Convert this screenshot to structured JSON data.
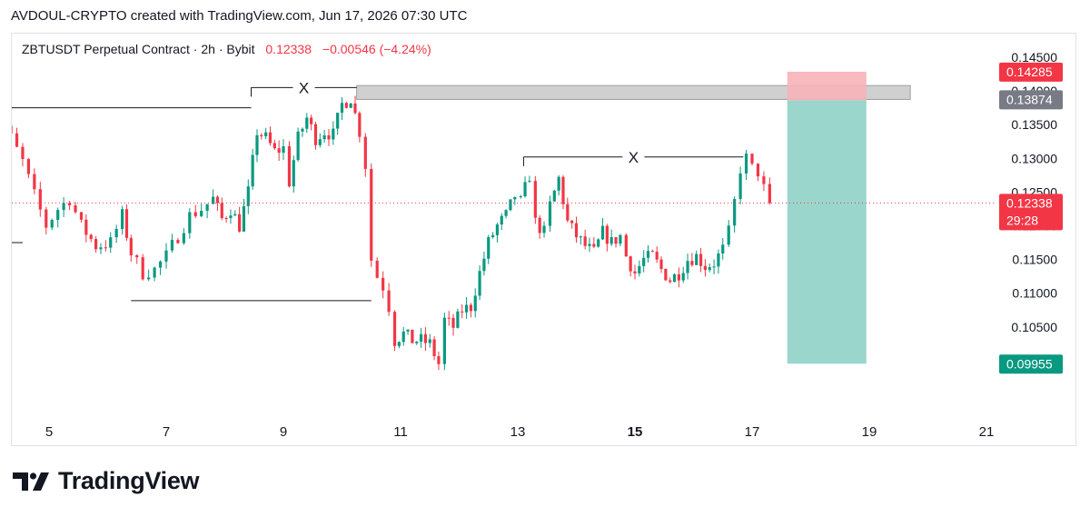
{
  "header": {
    "text": "AVDOUL-CRYPTO created with TradingView.com, Jun 17, 2026 07:30 UTC"
  },
  "legend": {
    "symbol": "ZBTUSDT Perpetual Contract · 2h · Bybit",
    "last": "0.12338",
    "change": "−0.00546 (−4.24%)"
  },
  "brand": {
    "name": "TradingView",
    "icon": "tradingview-logo-icon"
  },
  "colors": {
    "up": "#089981",
    "down": "#f23645",
    "line": "#131722",
    "zone": "#c8c8c8",
    "target": "#9ad6cb",
    "stop": "#f7b1b8"
  },
  "chart_data": {
    "type": "candlestick",
    "title": "ZBTUSDT Perpetual Contract · 2h · Bybit",
    "ylim": [
      0.0915,
      0.1485
    ],
    "y_ticks": [
      "0.14500",
      "0.14000",
      "0.13500",
      "0.13000",
      "0.12500",
      "0.12000",
      "0.11500",
      "0.11000",
      "0.10500"
    ],
    "x_ticks": [
      {
        "label": "5",
        "day": 5
      },
      {
        "label": "7",
        "day": 7
      },
      {
        "label": "9",
        "day": 9
      },
      {
        "label": "11",
        "day": 11
      },
      {
        "label": "13",
        "day": 13
      },
      {
        "label": "15",
        "day": 15,
        "bold": true
      },
      {
        "label": "17",
        "day": 17
      },
      {
        "label": "19",
        "day": 19
      },
      {
        "label": "21",
        "day": 21
      }
    ],
    "price_tags": [
      {
        "label": "0.14285",
        "value": 0.14285,
        "color": "#f23645"
      },
      {
        "label": "0.13874",
        "value": 0.13874,
        "color": "#787b86"
      },
      {
        "label": "0.12338",
        "sub": "29:28",
        "value": 0.12338,
        "color": "#f23645"
      },
      {
        "label": "0.09955",
        "value": 0.09955,
        "color": "#089981"
      }
    ],
    "annotations": [
      {
        "type": "level",
        "x1": 4.03,
        "x2": 8.45,
        "y": 0.1375
      },
      {
        "type": "level",
        "x1": 3.9,
        "x2": 4.55,
        "y": 0.1175
      },
      {
        "type": "level",
        "x1": 6.4,
        "x2": 10.5,
        "y": 0.1089
      },
      {
        "type": "level",
        "label": "X",
        "x1": 8.45,
        "x2": 10.25,
        "y": 0.1405
      },
      {
        "type": "level",
        "label": "X",
        "x1": 13.1,
        "x2": 16.85,
        "y": 0.1302
      },
      {
        "type": "zone",
        "x1": 10.25,
        "x2": 19.7,
        "y1": 0.13874,
        "y2": 0.1408
      },
      {
        "type": "short_position",
        "x1": 17.6,
        "x2": 18.95,
        "entry": 0.1386,
        "stop": 0.14285,
        "target": 0.09955
      }
    ],
    "last_price": 0.12338,
    "candle_points": [
      [
        4.0,
        0.1285
      ],
      [
        4.15,
        0.1365
      ],
      [
        4.35,
        0.133
      ],
      [
        4.55,
        0.1295
      ],
      [
        4.75,
        0.1245
      ],
      [
        4.95,
        0.12
      ],
      [
        5.15,
        0.1225
      ],
      [
        5.35,
        0.124
      ],
      [
        5.55,
        0.12
      ],
      [
        5.8,
        0.117
      ],
      [
        6.05,
        0.1175
      ],
      [
        6.25,
        0.1215
      ],
      [
        6.4,
        0.116
      ],
      [
        6.6,
        0.113
      ],
      [
        6.8,
        0.1135
      ],
      [
        7.0,
        0.1155
      ],
      [
        7.2,
        0.1185
      ],
      [
        7.4,
        0.1215
      ],
      [
        7.6,
        0.1225
      ],
      [
        7.8,
        0.124
      ],
      [
        7.95,
        0.121
      ],
      [
        8.1,
        0.1225
      ],
      [
        8.25,
        0.12
      ],
      [
        8.4,
        0.125
      ],
      [
        8.55,
        0.134
      ],
      [
        8.7,
        0.133
      ],
      [
        8.85,
        0.131
      ],
      [
        9.0,
        0.1315
      ],
      [
        9.1,
        0.1265
      ],
      [
        9.25,
        0.133
      ],
      [
        9.4,
        0.136
      ],
      [
        9.55,
        0.133
      ],
      [
        9.7,
        0.134
      ],
      [
        9.85,
        0.1335
      ],
      [
        10.0,
        0.138
      ],
      [
        10.15,
        0.139
      ],
      [
        10.3,
        0.134
      ],
      [
        10.4,
        0.129
      ],
      [
        10.5,
        0.115
      ],
      [
        10.6,
        0.1125
      ],
      [
        10.7,
        0.111
      ],
      [
        10.8,
        0.108
      ],
      [
        10.9,
        0.103
      ],
      [
        11.05,
        0.104
      ],
      [
        11.2,
        0.103
      ],
      [
        11.35,
        0.103
      ],
      [
        11.5,
        0.1025
      ],
      [
        11.65,
        0.0995
      ],
      [
        11.75,
        0.106
      ],
      [
        11.9,
        0.105
      ],
      [
        12.05,
        0.1075
      ],
      [
        12.2,
        0.108
      ],
      [
        12.35,
        0.113
      ],
      [
        12.5,
        0.1175
      ],
      [
        12.65,
        0.12
      ],
      [
        12.8,
        0.1215
      ],
      [
        12.95,
        0.1245
      ],
      [
        13.05,
        0.1235
      ],
      [
        13.2,
        0.1275
      ],
      [
        13.3,
        0.1205
      ],
      [
        13.45,
        0.119
      ],
      [
        13.55,
        0.123
      ],
      [
        13.7,
        0.127
      ],
      [
        13.85,
        0.1205
      ],
      [
        14.0,
        0.1185
      ],
      [
        14.15,
        0.117
      ],
      [
        14.3,
        0.116
      ],
      [
        14.45,
        0.119
      ],
      [
        14.6,
        0.1175
      ],
      [
        14.75,
        0.1185
      ],
      [
        14.85,
        0.1155
      ],
      [
        15.0,
        0.113
      ],
      [
        15.15,
        0.115
      ],
      [
        15.3,
        0.1155
      ],
      [
        15.45,
        0.1135
      ],
      [
        15.6,
        0.112
      ],
      [
        15.75,
        0.113
      ],
      [
        15.9,
        0.115
      ],
      [
        16.05,
        0.1155
      ],
      [
        16.2,
        0.114
      ],
      [
        16.35,
        0.1145
      ],
      [
        16.5,
        0.1165
      ],
      [
        16.6,
        0.119
      ],
      [
        16.7,
        0.1235
      ],
      [
        16.8,
        0.1285
      ],
      [
        16.9,
        0.13
      ],
      [
        17.0,
        0.1285
      ],
      [
        17.1,
        0.128
      ],
      [
        17.2,
        0.1255
      ],
      [
        17.3,
        0.12338
      ]
    ]
  }
}
